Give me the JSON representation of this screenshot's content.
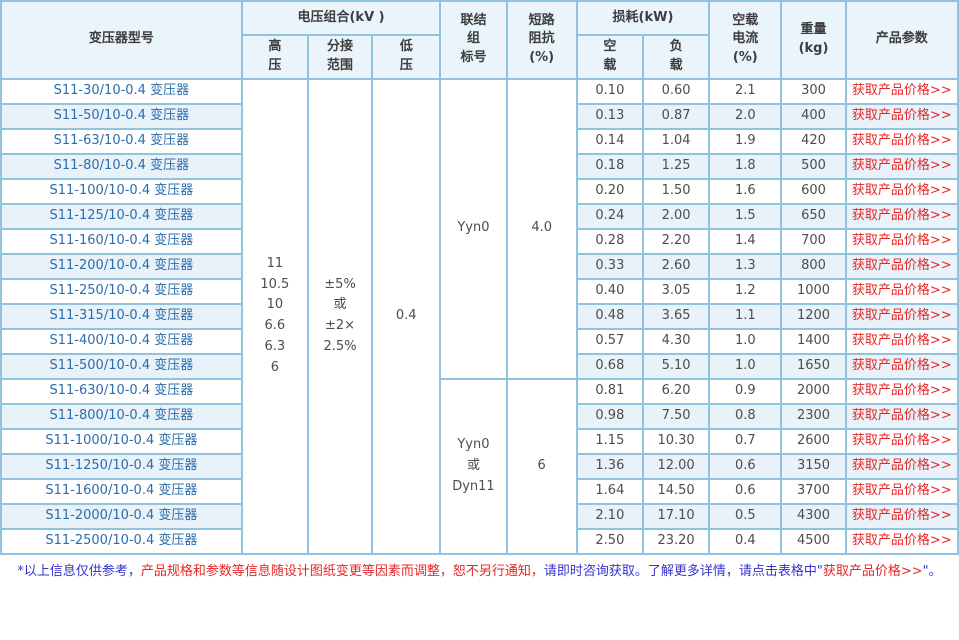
{
  "colors": {
    "border": "#92c3de",
    "header_bg": "#eaf4fb",
    "alt_row_bg": "#e9f2f9",
    "model_blue": "#2b6dad",
    "link_red": "#e62626",
    "footer_blue": "#3434cf",
    "footer_red": "#e62626",
    "text": "#4d4d4d"
  },
  "table": {
    "headers": {
      "model": "变压器型号",
      "voltage_group": "电压组合(kV )",
      "hv": "高\n压",
      "tap_range": "分接\n范围",
      "lv": "低\n压",
      "vector_group": "联结\n组\n标号",
      "impedance": "短路\n阻抗\n(%)",
      "loss_group": "损耗(kW)",
      "no_load": "空\n载",
      "load": "负\n载",
      "no_load_current": "空载\n电流\n(%)",
      "weight": "重量\n(kg)",
      "product_params": "产品参数"
    },
    "link_label": "获取产品价格>>",
    "merges": [
      {
        "row": 0,
        "cells": [
          {
            "name": "hv-voltage-cell",
            "rowspan": 19,
            "text": "11\n10.5\n10\n6.6\n6.3\n6"
          },
          {
            "name": "tap-range-cell",
            "rowspan": 19,
            "text": "±5%\n或\n±2×\n2.5%"
          },
          {
            "name": "lv-voltage-cell",
            "rowspan": 19,
            "text": "0.4"
          },
          {
            "name": "vector-group-cell",
            "rowspan": 12,
            "text": "Yyn0"
          },
          {
            "name": "impedance-cell",
            "rowspan": 12,
            "text": "4.0"
          }
        ]
      },
      {
        "row": 12,
        "cells": [
          {
            "name": "vector-group-cell",
            "rowspan": 7,
            "text": "Yyn0\n或\nDyn11"
          },
          {
            "name": "impedance-cell",
            "rowspan": 7,
            "text": "6"
          }
        ]
      }
    ],
    "rows": [
      {
        "model": "S11-30/10-0.4 变压器",
        "no_load_loss": "0.10",
        "load_loss": "0.60",
        "no_load_current": "2.1",
        "weight": "300"
      },
      {
        "model": "S11-50/10-0.4 变压器",
        "no_load_loss": "0.13",
        "load_loss": "0.87",
        "no_load_current": "2.0",
        "weight": "400"
      },
      {
        "model": "S11-63/10-0.4 变压器",
        "no_load_loss": "0.14",
        "load_loss": "1.04",
        "no_load_current": "1.9",
        "weight": "420"
      },
      {
        "model": "S11-80/10-0.4 变压器",
        "no_load_loss": "0.18",
        "load_loss": "1.25",
        "no_load_current": "1.8",
        "weight": "500"
      },
      {
        "model": "S11-100/10-0.4 变压器",
        "no_load_loss": "0.20",
        "load_loss": "1.50",
        "no_load_current": "1.6",
        "weight": "600"
      },
      {
        "model": "S11-125/10-0.4 变压器",
        "no_load_loss": "0.24",
        "load_loss": "2.00",
        "no_load_current": "1.5",
        "weight": "650"
      },
      {
        "model": "S11-160/10-0.4 变压器",
        "no_load_loss": "0.28",
        "load_loss": "2.20",
        "no_load_current": "1.4",
        "weight": "700"
      },
      {
        "model": "S11-200/10-0.4 变压器",
        "no_load_loss": "0.33",
        "load_loss": "2.60",
        "no_load_current": "1.3",
        "weight": "800"
      },
      {
        "model": "S11-250/10-0.4 变压器",
        "no_load_loss": "0.40",
        "load_loss": "3.05",
        "no_load_current": "1.2",
        "weight": "1000"
      },
      {
        "model": "S11-315/10-0.4 变压器",
        "no_load_loss": "0.48",
        "load_loss": "3.65",
        "no_load_current": "1.1",
        "weight": "1200"
      },
      {
        "model": "S11-400/10-0.4 变压器",
        "no_load_loss": "0.57",
        "load_loss": "4.30",
        "no_load_current": "1.0",
        "weight": "1400"
      },
      {
        "model": "S11-500/10-0.4 变压器",
        "no_load_loss": "0.68",
        "load_loss": "5.10",
        "no_load_current": "1.0",
        "weight": "1650"
      },
      {
        "model": "S11-630/10-0.4 变压器",
        "no_load_loss": "0.81",
        "load_loss": "6.20",
        "no_load_current": "0.9",
        "weight": "2000"
      },
      {
        "model": "S11-800/10-0.4 变压器",
        "no_load_loss": "0.98",
        "load_loss": "7.50",
        "no_load_current": "0.8",
        "weight": "2300"
      },
      {
        "model": "S11-1000/10-0.4 变压器",
        "no_load_loss": "1.15",
        "load_loss": "10.30",
        "no_load_current": "0.7",
        "weight": "2600"
      },
      {
        "model": "S11-1250/10-0.4 变压器",
        "no_load_loss": "1.36",
        "load_loss": "12.00",
        "no_load_current": "0.6",
        "weight": "3150"
      },
      {
        "model": "S11-1600/10-0.4 变压器",
        "no_load_loss": "1.64",
        "load_loss": "14.50",
        "no_load_current": "0.6",
        "weight": "3700"
      },
      {
        "model": "S11-2000/10-0.4 变压器",
        "no_load_loss": "2.10",
        "load_loss": "17.10",
        "no_load_current": "0.5",
        "weight": "4300"
      },
      {
        "model": "S11-2500/10-0.4 变压器",
        "no_load_loss": "2.50",
        "load_loss": "23.20",
        "no_load_current": "0.4",
        "weight": "4500"
      }
    ]
  },
  "footer": {
    "segments": [
      {
        "text": "*以上信息仅供参考，",
        "color": "blue"
      },
      {
        "text": "产品规格和参数等信息随设计图纸变更等因素而调整，恕不另行通知，",
        "color": "red"
      },
      {
        "text": "请即时咨询获取。了解更多详情，请点击表格中\"",
        "color": "blue"
      },
      {
        "text": "获取产品价格>>",
        "color": "red"
      },
      {
        "text": "\"。",
        "color": "blue"
      }
    ]
  }
}
